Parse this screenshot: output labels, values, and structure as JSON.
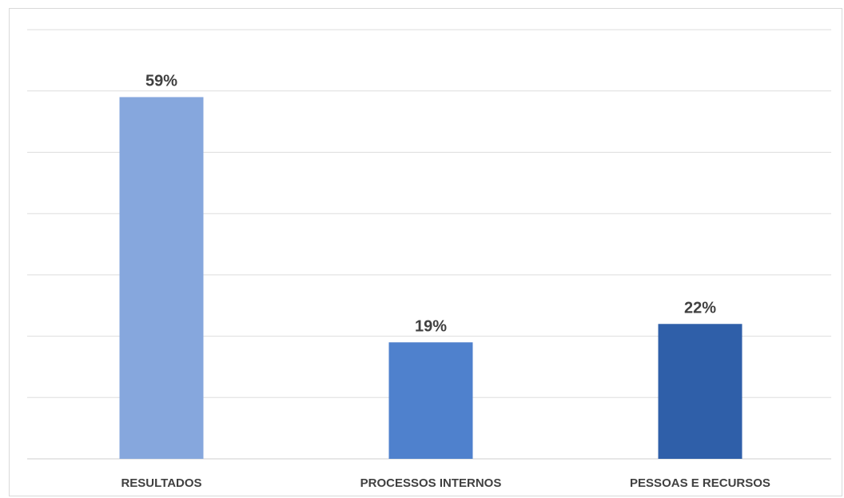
{
  "chart_data": {
    "type": "bar",
    "categories": [
      "RESULTADOS",
      "PROCESSOS INTERNOS",
      "PESSOAS E RECURSOS"
    ],
    "values": [
      59,
      19,
      22
    ],
    "data_labels": [
      "59%",
      "19%",
      "22%"
    ],
    "colors": [
      "#86a7dd",
      "#4f81cd",
      "#2f5fa9"
    ],
    "ylim": [
      0,
      70
    ],
    "grid": true,
    "legend": "none"
  }
}
